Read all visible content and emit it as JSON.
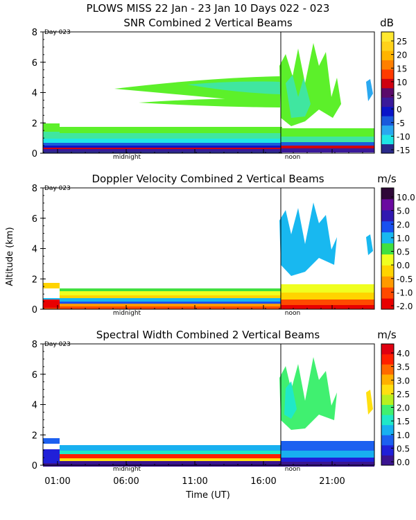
{
  "figure": {
    "title": "PLOWS MISS  22 Jan - 23 Jan 10 Days 022 - 023",
    "xlabel": "Time (UT)",
    "ylabel": "Altitude (km)",
    "x_ticks": [
      "01:00",
      "06:00",
      "11:00",
      "16:00",
      "21:00"
    ],
    "markers": {
      "day": "Day 023",
      "midnight": "midnight",
      "noon": "noon"
    }
  },
  "chart_data": [
    {
      "type": "heatmap",
      "title": "SNR Combined 2 Vertical Beams",
      "unit": "dB",
      "y_ticks": [
        "0",
        "2",
        "4",
        "6",
        "8"
      ],
      "ylim": [
        0,
        8
      ],
      "colorbar": {
        "labels": [
          "-15",
          "-10",
          "-5",
          "0",
          "5",
          "10",
          "15",
          "20",
          "25"
        ],
        "colors": [
          "#2a2a8a",
          "#1fe6e6",
          "#2aa8f0",
          "#1a5adc",
          "#0a14c8",
          "#3a1a9a",
          "#5a0a6a",
          "#cf0010",
          "#ff3a00",
          "#ff7f00",
          "#ffb400",
          "#ffd21a",
          "#ffe830"
        ]
      }
    },
    {
      "type": "heatmap",
      "title": "Doppler Velocity Combined 2 Vertical Beams",
      "unit": "m/s",
      "y_ticks": [
        "0",
        "2",
        "4",
        "6",
        "8"
      ],
      "ylim": [
        0,
        8
      ],
      "colorbar": {
        "labels": [
          "-2.0",
          "-1.0",
          "-0.5",
          "0.0",
          "0.5",
          "1.0",
          "2.0",
          "5.0",
          "10.0"
        ],
        "colors": [
          "#e80000",
          "#ff4a00",
          "#ff9a00",
          "#ffd400",
          "#f0ff20",
          "#40e040",
          "#18b8f0",
          "#1850f0",
          "#3018b0",
          "#6a0aa0",
          "#2e0838"
        ]
      }
    },
    {
      "type": "heatmap",
      "title": "Spectral Width Combined 2 Vertical Beams",
      "unit": "m/s",
      "y_ticks": [
        "0",
        "2",
        "4",
        "6",
        "8"
      ],
      "ylim": [
        0,
        8
      ],
      "colorbar": {
        "labels": [
          "0.0",
          "0.5",
          "1.0",
          "1.5",
          "2.0",
          "2.5",
          "3.0",
          "3.5",
          "4.0"
        ],
        "colors": [
          "#3a1490",
          "#2020d8",
          "#1c60f0",
          "#18b0f0",
          "#20e8c8",
          "#40f070",
          "#b8f020",
          "#ffe010",
          "#ffb000",
          "#ff6a00",
          "#ff2000",
          "#e00010"
        ]
      }
    }
  ]
}
